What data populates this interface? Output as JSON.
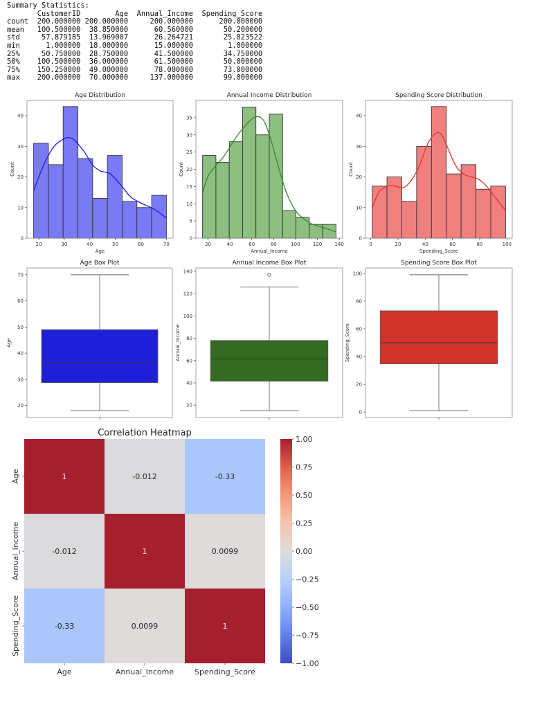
{
  "summary": {
    "title": "Summary Statistics:",
    "columns": [
      "CustomerID",
      "Age",
      "Annual_Income",
      "Spending_Score"
    ],
    "rows": [
      {
        "stat": "count",
        "values": [
          "200.000000",
          "200.000000",
          "200.000000",
          "200.000000"
        ]
      },
      {
        "stat": "mean",
        "values": [
          "100.500000",
          "38.850000",
          "60.560000",
          "50.200000"
        ]
      },
      {
        "stat": "std",
        "values": [
          "57.879185",
          "13.969007",
          "26.264721",
          "25.823522"
        ]
      },
      {
        "stat": "min",
        "values": [
          "1.000000",
          "18.000000",
          "15.000000",
          "1.000000"
        ]
      },
      {
        "stat": "25%",
        "values": [
          "50.750000",
          "28.750000",
          "41.500000",
          "34.750000"
        ]
      },
      {
        "stat": "50%",
        "values": [
          "100.500000",
          "36.000000",
          "61.500000",
          "50.000000"
        ]
      },
      {
        "stat": "75%",
        "values": [
          "150.250000",
          "49.000000",
          "78.000000",
          "73.000000"
        ]
      },
      {
        "stat": "max",
        "values": [
          "200.000000",
          "70.000000",
          "137.000000",
          "99.000000"
        ]
      }
    ]
  },
  "chart_data": [
    {
      "type": "bar",
      "subtype": "histogram",
      "title": "Age Distribution",
      "xlabel": "Age",
      "ylabel": "Count",
      "bin_range": [
        18,
        70
      ],
      "counts": [
        31,
        24,
        43,
        26,
        13,
        27,
        12,
        10,
        14
      ],
      "xlim": [
        15.4,
        72.6
      ],
      "ylim": [
        0,
        45
      ],
      "xticks": [
        20,
        30,
        40,
        50,
        60,
        70
      ],
      "yticks": [
        0,
        10,
        20,
        30,
        40
      ],
      "kde": [
        [
          18,
          15.5
        ],
        [
          22,
          24
        ],
        [
          26,
          30
        ],
        [
          30,
          32.5
        ],
        [
          32,
          32.8
        ],
        [
          34,
          32
        ],
        [
          38,
          28
        ],
        [
          41,
          24
        ],
        [
          44,
          22
        ],
        [
          48,
          21
        ],
        [
          52,
          17.5
        ],
        [
          56,
          13.5
        ],
        [
          60,
          11.5
        ],
        [
          64,
          10
        ],
        [
          67,
          8.5
        ],
        [
          70,
          6.5
        ]
      ],
      "color": "#7a7af5",
      "line_color": "#1a1aee"
    },
    {
      "type": "bar",
      "subtype": "histogram",
      "title": "Annual Income Distribution",
      "xlabel": "Annual_Income",
      "ylabel": "Count",
      "bin_range": [
        15,
        137
      ],
      "counts": [
        24,
        22,
        28,
        38,
        30,
        36,
        8,
        6,
        4,
        4
      ],
      "xlim": [
        8.9,
        143.1
      ],
      "ylim": [
        0,
        40
      ],
      "xticks": [
        20,
        40,
        60,
        80,
        100,
        120,
        140
      ],
      "yticks": [
        0,
        5,
        10,
        15,
        20,
        25,
        30,
        35
      ],
      "kde": [
        [
          15,
          13
        ],
        [
          20,
          18
        ],
        [
          27,
          21
        ],
        [
          35,
          24
        ],
        [
          45,
          29
        ],
        [
          55,
          33
        ],
        [
          62,
          35
        ],
        [
          67,
          35.2
        ],
        [
          72,
          33.5
        ],
        [
          78,
          28
        ],
        [
          85,
          20
        ],
        [
          92,
          13
        ],
        [
          100,
          8
        ],
        [
          108,
          5.5
        ],
        [
          116,
          4
        ],
        [
          124,
          3.2
        ],
        [
          130,
          2.6
        ],
        [
          137,
          1.8
        ]
      ],
      "color": "#8cbf80",
      "line_color": "#2e8b22"
    },
    {
      "type": "bar",
      "subtype": "histogram",
      "title": "Spending Score Distribution",
      "xlabel": "Spending_Score",
      "ylabel": "Count",
      "bin_range": [
        1,
        99
      ],
      "counts": [
        17,
        20,
        12,
        30,
        43,
        21,
        24,
        16,
        17
      ],
      "xlim": [
        -3.9,
        103.9
      ],
      "ylim": [
        0,
        45
      ],
      "xticks": [
        0,
        20,
        40,
        60,
        80,
        100
      ],
      "yticks": [
        0,
        10,
        20,
        30,
        40
      ],
      "kde": [
        [
          1,
          10
        ],
        [
          6,
          15
        ],
        [
          12,
          17
        ],
        [
          18,
          17
        ],
        [
          24,
          16.5
        ],
        [
          30,
          19
        ],
        [
          36,
          24
        ],
        [
          42,
          31
        ],
        [
          48,
          34.3
        ],
        [
          52,
          33.8
        ],
        [
          56,
          30
        ],
        [
          62,
          24
        ],
        [
          68,
          21
        ],
        [
          74,
          20
        ],
        [
          80,
          19
        ],
        [
          86,
          16.5
        ],
        [
          92,
          13
        ],
        [
          99,
          9
        ]
      ],
      "color": "#f08080",
      "line_color": "#e53323"
    },
    {
      "type": "box",
      "title": "Age Box Plot",
      "ylabel": "Age",
      "whisker_low": 18,
      "q1": 28.75,
      "median": 36,
      "q3": 49,
      "whisker_high": 70,
      "outliers": [],
      "ylim": [
        15.4,
        72.6
      ],
      "yticks": [
        20,
        30,
        40,
        50,
        60,
        70
      ],
      "color": "#1f1fd9"
    },
    {
      "type": "box",
      "title": "Annual Income Box Plot",
      "ylabel": "Annual_Income",
      "whisker_low": 15,
      "q1": 41.5,
      "median": 61.5,
      "q3": 78,
      "whisker_high": 126,
      "outliers": [
        137
      ],
      "ylim": [
        8.9,
        143.1
      ],
      "yticks": [
        20,
        40,
        60,
        80,
        100,
        120,
        140
      ],
      "color": "#336b22"
    },
    {
      "type": "box",
      "title": "Spending Score Box Plot",
      "ylabel": "Spending_Score",
      "whisker_low": 1,
      "q1": 34.75,
      "median": 50,
      "q3": 73,
      "whisker_high": 99,
      "outliers": [],
      "ylim": [
        -3.9,
        103.9
      ],
      "yticks": [
        0,
        20,
        40,
        60,
        80,
        100
      ],
      "color": "#d1342b"
    },
    {
      "type": "heatmap",
      "title": "Correlation Heatmap",
      "labels": [
        "Age",
        "Annual_Income",
        "Spending_Score"
      ],
      "matrix": [
        [
          1,
          -0.012,
          -0.33
        ],
        [
          -0.012,
          1,
          0.0099
        ],
        [
          -0.33,
          0.0099,
          1
        ]
      ],
      "annotations": [
        [
          "1",
          "-0.012",
          "-0.33"
        ],
        [
          "-0.012",
          "1",
          "0.0099"
        ],
        [
          "-0.33",
          "0.0099",
          "1"
        ]
      ],
      "colormap": "coolwarm",
      "vmin": -1,
      "vmax": 1,
      "colorbar_ticks": [
        "1.00",
        "0.75",
        "0.50",
        "0.25",
        "0.00",
        "−0.25",
        "−0.50",
        "−0.75",
        "−1.00"
      ],
      "colorbar_values": [
        1,
        0.75,
        0.5,
        0.25,
        0,
        -0.25,
        -0.5,
        -0.75,
        -1
      ]
    }
  ]
}
